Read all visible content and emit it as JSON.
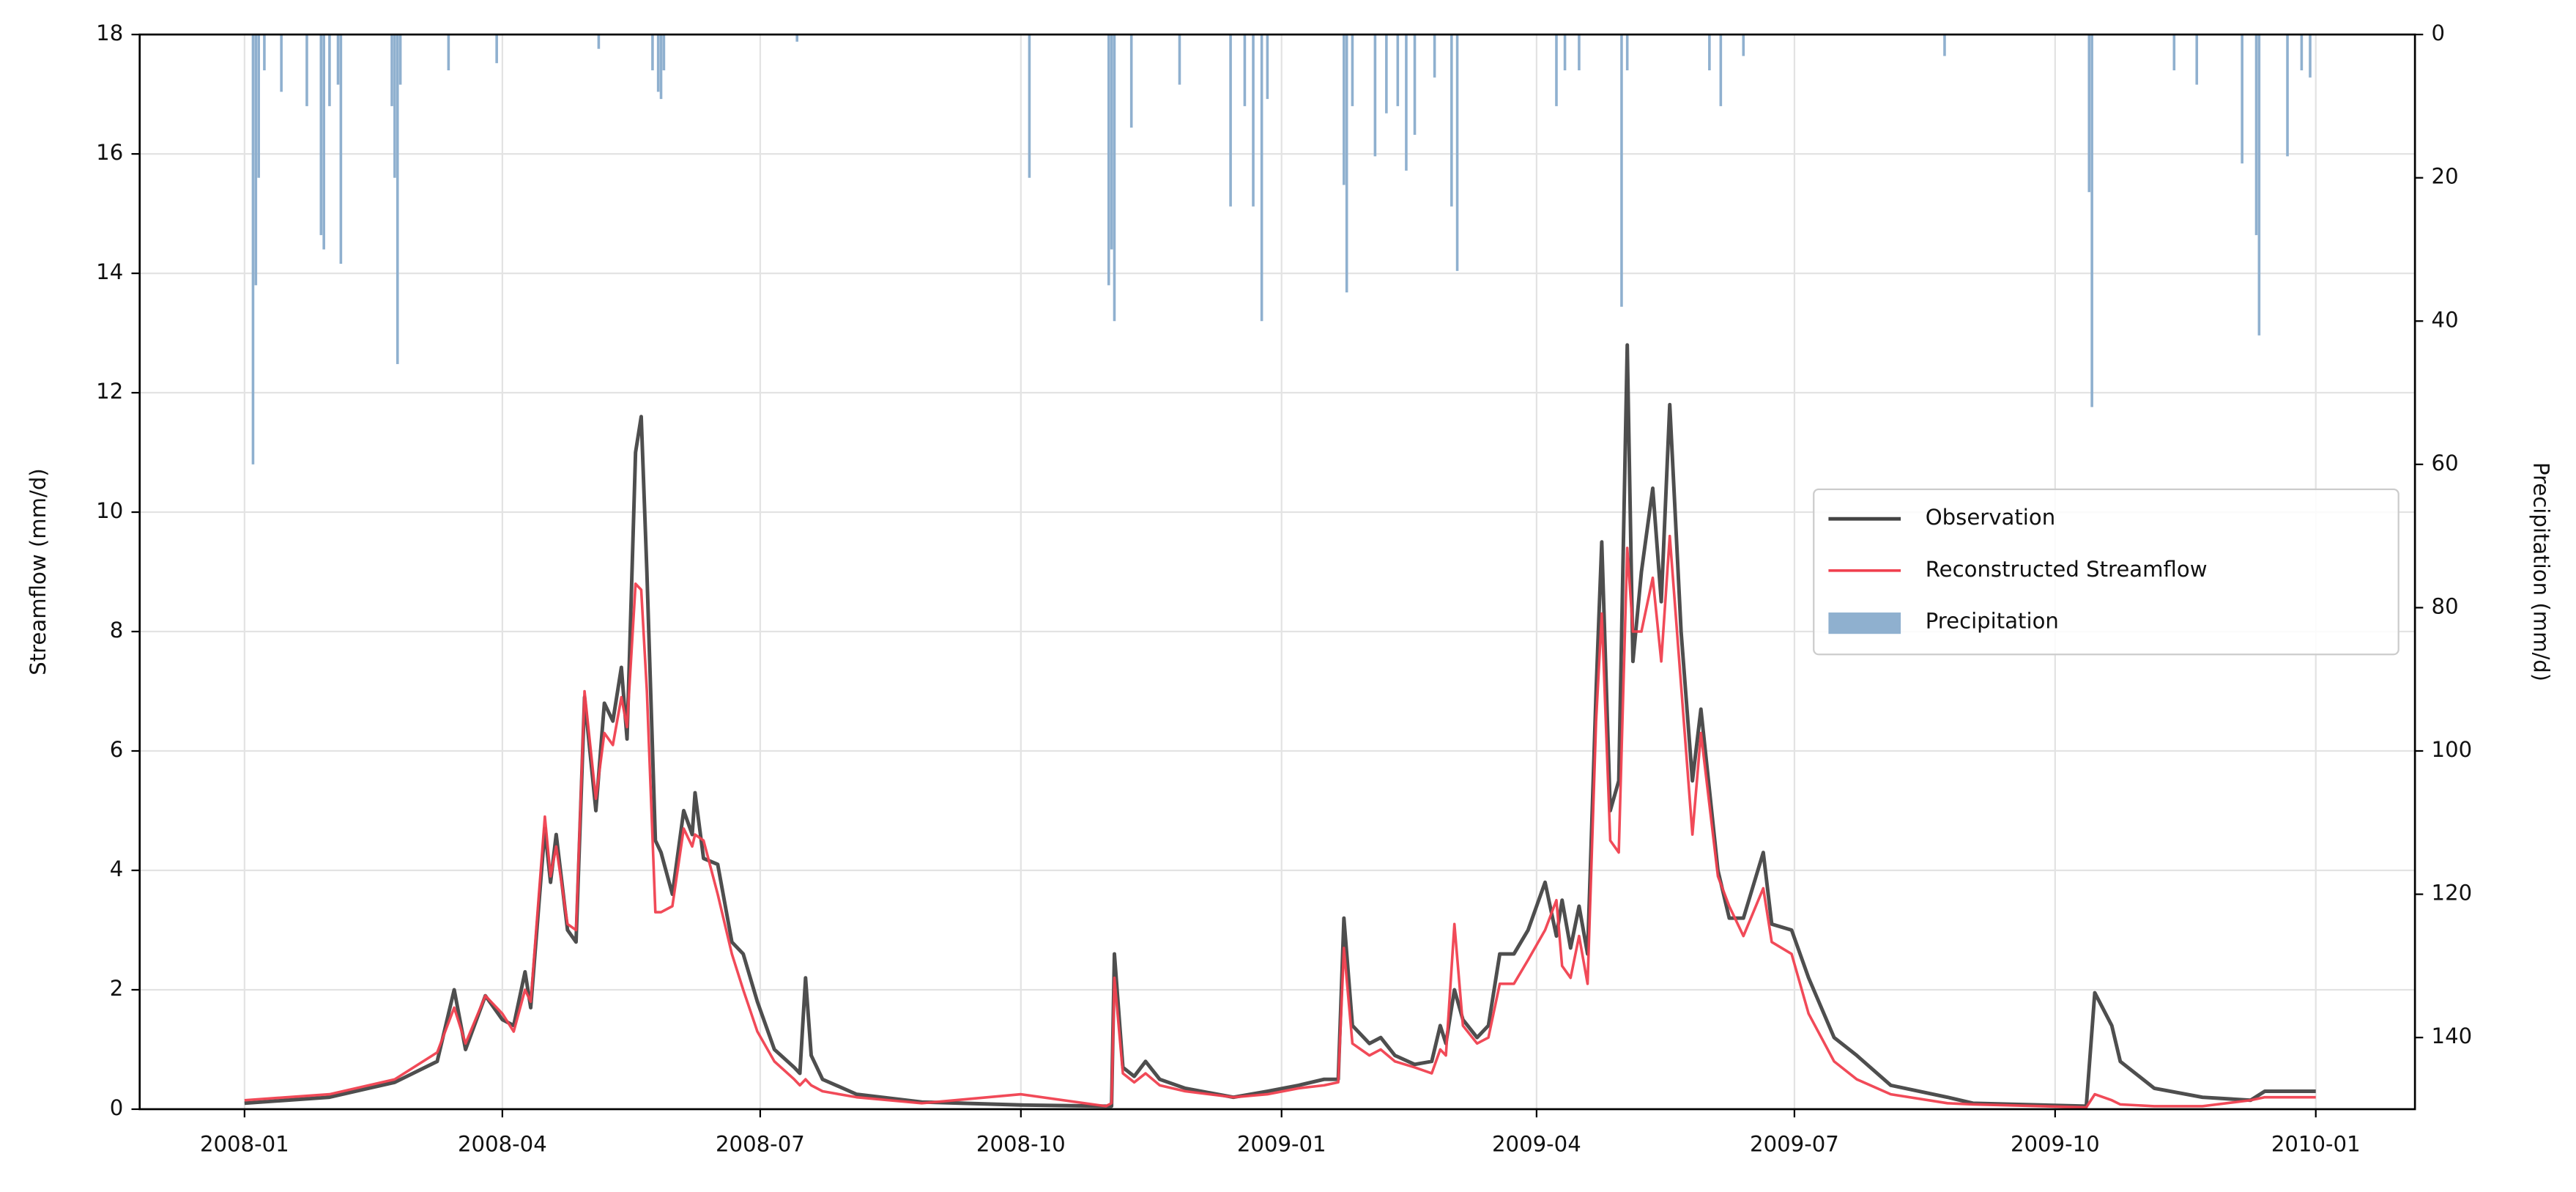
{
  "chart_data": {
    "type": "line",
    "ylabel": "Streamflow (mm/d)",
    "y2label": "Precipitation (mm/d)",
    "grid": true,
    "legend": "center right",
    "xlim": [
      -37,
      766
    ],
    "xticks": [
      {
        "value": 0,
        "label": "2008-01"
      },
      {
        "value": 91,
        "label": "2008-04"
      },
      {
        "value": 182,
        "label": "2008-07"
      },
      {
        "value": 274,
        "label": "2008-10"
      },
      {
        "value": 366,
        "label": "2009-01"
      },
      {
        "value": 456,
        "label": "2009-04"
      },
      {
        "value": 547,
        "label": "2009-07"
      },
      {
        "value": 639,
        "label": "2009-10"
      },
      {
        "value": 731,
        "label": "2010-01"
      }
    ],
    "ylim": [
      0,
      18
    ],
    "yticks": [
      0,
      2,
      4,
      6,
      8,
      10,
      12,
      14,
      16,
      18
    ],
    "y2lim": [
      0,
      150
    ],
    "y2ticks": [
      0,
      20,
      40,
      60,
      80,
      100,
      120,
      140
    ],
    "y2_inverted": true,
    "x": [
      0,
      30,
      53,
      68,
      74,
      78,
      85,
      91,
      95,
      99,
      101,
      106,
      108,
      110,
      114,
      117,
      120,
      124,
      127,
      130,
      133,
      135,
      138,
      140,
      142,
      145,
      147,
      151,
      155,
      158,
      159,
      162,
      167,
      172,
      176,
      181,
      187,
      194,
      196,
      198,
      200,
      204,
      216,
      239,
      274,
      304,
      306,
      307,
      310,
      314,
      318,
      323,
      332,
      349,
      361,
      372,
      381,
      386,
      388,
      391,
      397,
      401,
      406,
      413,
      419,
      422,
      424,
      427,
      430,
      435,
      439,
      443,
      448,
      453,
      459,
      463,
      465,
      468,
      471,
      474,
      477,
      479,
      482,
      485,
      488,
      490,
      493,
      497,
      500,
      503,
      507,
      511,
      514,
      520,
      524,
      529,
      536,
      539,
      546,
      552,
      561,
      569,
      581,
      601,
      610,
      650,
      653,
      659,
      662,
      674,
      691,
      708,
      713,
      731
    ],
    "series": [
      {
        "name": "Observation",
        "color": "#444444",
        "width": 2.2,
        "values": [
          0.1,
          0.2,
          0.45,
          0.8,
          2.0,
          1.0,
          1.9,
          1.5,
          1.4,
          2.3,
          1.7,
          4.7,
          3.8,
          4.6,
          3.0,
          2.8,
          6.9,
          5.0,
          6.8,
          6.5,
          7.4,
          6.2,
          11.0,
          11.6,
          9.0,
          4.5,
          4.3,
          3.6,
          5.0,
          4.6,
          5.3,
          4.2,
          4.1,
          2.8,
          2.6,
          1.8,
          1.0,
          0.7,
          0.6,
          2.2,
          0.9,
          0.5,
          0.25,
          0.12,
          0.07,
          0.05,
          0.05,
          2.6,
          0.7,
          0.55,
          0.8,
          0.5,
          0.35,
          0.2,
          0.3,
          0.4,
          0.5,
          0.5,
          3.2,
          1.4,
          1.1,
          1.2,
          0.9,
          0.75,
          0.8,
          1.4,
          1.1,
          2.0,
          1.5,
          1.2,
          1.4,
          2.6,
          2.6,
          3.0,
          3.8,
          2.9,
          3.5,
          2.7,
          3.4,
          2.6,
          7.0,
          9.5,
          5.0,
          5.5,
          12.8,
          7.5,
          9.0,
          10.4,
          8.5,
          11.8,
          8.0,
          5.5,
          6.7,
          4.0,
          3.2,
          3.2,
          4.3,
          3.1,
          3.0,
          2.2,
          1.2,
          0.9,
          0.4,
          0.2,
          0.1,
          0.05,
          1.95,
          1.4,
          0.8,
          0.35,
          0.2,
          0.15,
          0.3,
          0.3
        ]
      },
      {
        "name": "Reconstructed Streamflow",
        "color": "#f0404f",
        "width": 1.6,
        "values": [
          0.15,
          0.25,
          0.5,
          0.95,
          1.7,
          1.1,
          1.9,
          1.6,
          1.3,
          2.0,
          1.8,
          4.9,
          3.9,
          4.4,
          3.1,
          3.0,
          7.0,
          5.2,
          6.3,
          6.1,
          6.9,
          6.4,
          8.8,
          8.7,
          7.0,
          3.3,
          3.3,
          3.4,
          4.7,
          4.4,
          4.6,
          4.5,
          3.6,
          2.6,
          2.0,
          1.3,
          0.8,
          0.5,
          0.4,
          0.5,
          0.4,
          0.3,
          0.2,
          0.1,
          0.25,
          0.05,
          0.1,
          2.2,
          0.6,
          0.45,
          0.6,
          0.4,
          0.3,
          0.2,
          0.25,
          0.35,
          0.4,
          0.45,
          2.7,
          1.1,
          0.9,
          1.0,
          0.8,
          0.7,
          0.6,
          1.0,
          0.9,
          3.1,
          1.4,
          1.1,
          1.2,
          2.1,
          2.1,
          2.5,
          3.0,
          3.5,
          2.4,
          2.2,
          2.9,
          2.1,
          6.5,
          8.3,
          4.5,
          4.3,
          9.4,
          8.0,
          8.0,
          8.9,
          7.5,
          9.6,
          7.1,
          4.6,
          6.3,
          3.9,
          3.4,
          2.9,
          3.7,
          2.8,
          2.6,
          1.6,
          0.8,
          0.5,
          0.25,
          0.1,
          0.08,
          0.03,
          0.25,
          0.15,
          0.08,
          0.05,
          0.05,
          0.15,
          0.2,
          0.2
        ]
      },
      {
        "name": "Precipitation",
        "type": "bar",
        "axis": "y2",
        "color": "#8fb0cf",
        "x": [
          3,
          4,
          5,
          7,
          13,
          22,
          27,
          28,
          30,
          33,
          34,
          52,
          53,
          54,
          55,
          72,
          89,
          125,
          144,
          146,
          147,
          148,
          195,
          277,
          305,
          306,
          307,
          313,
          330,
          348,
          353,
          356,
          359,
          361,
          388,
          389,
          391,
          399,
          403,
          407,
          410,
          413,
          420,
          426,
          428,
          463,
          466,
          471,
          486,
          488,
          517,
          521,
          529,
          600,
          651,
          652,
          681,
          689,
          705,
          710,
          711,
          721,
          726,
          729
        ],
        "values": [
          60,
          35,
          20,
          5,
          8,
          10,
          28,
          30,
          10,
          7,
          32,
          10,
          20,
          46,
          7,
          5,
          4,
          2,
          5,
          8,
          9,
          5,
          1,
          20,
          35,
          30,
          40,
          13,
          7,
          24,
          10,
          24,
          40,
          9,
          21,
          36,
          10,
          17,
          11,
          10,
          19,
          14,
          6,
          24,
          33,
          10,
          5,
          5,
          38,
          5,
          5,
          10,
          3,
          3,
          22,
          52,
          5,
          7,
          18,
          28,
          42,
          17,
          5,
          6
        ]
      }
    ]
  }
}
